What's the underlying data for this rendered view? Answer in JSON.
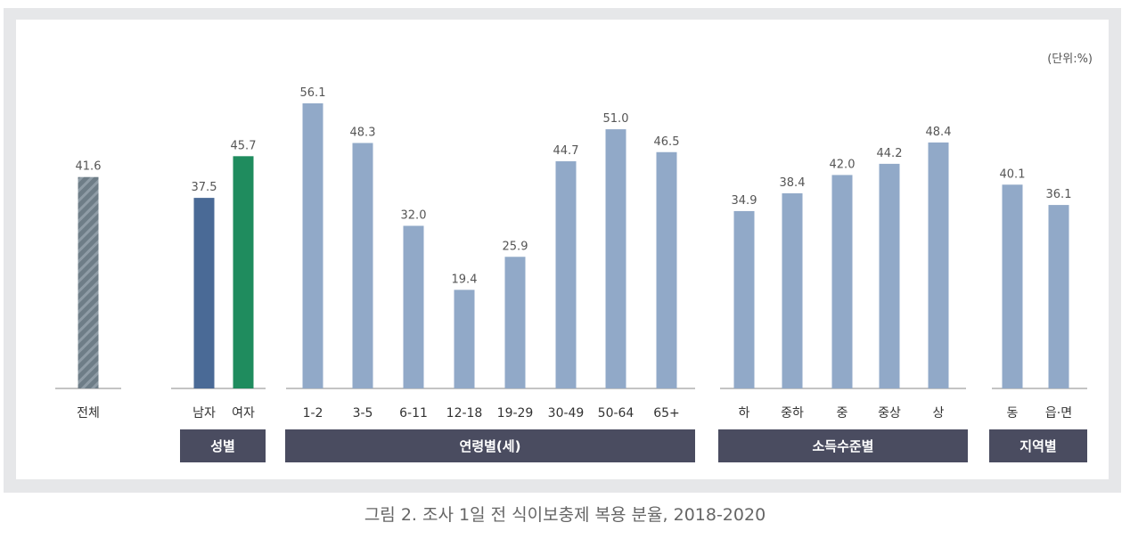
{
  "unit_label": "(단위:%)",
  "caption": "그림 2. 조사 1일 전 식이보충제 복용 분율, 2018-2020",
  "colors": {
    "total": "#6e7d87",
    "total_stripe": "#8f9ca6",
    "male": "#4a6a96",
    "female": "#1f8c5e",
    "default": "#91a9c8",
    "group_bg": "#4a4c60",
    "axis": "#888888"
  },
  "chart_data": {
    "type": "bar",
    "ylim": [
      0,
      60
    ],
    "groups": [
      {
        "label": "",
        "categories": [
          "전체"
        ],
        "values": [
          41.6
        ],
        "values_text": [
          "41.6"
        ],
        "color_keys": [
          "total"
        ]
      },
      {
        "label": "성별",
        "categories": [
          "남자",
          "여자"
        ],
        "values": [
          37.5,
          45.7
        ],
        "values_text": [
          "37.5",
          "45.7"
        ],
        "color_keys": [
          "male",
          "female"
        ]
      },
      {
        "label": "연령별(세)",
        "categories": [
          "1-2",
          "3-5",
          "6-11",
          "12-18",
          "19-29",
          "30-49",
          "50-64",
          "65+"
        ],
        "values": [
          56.1,
          48.3,
          32.0,
          19.4,
          25.9,
          44.7,
          51.0,
          46.5
        ],
        "values_text": [
          "56.1",
          "48.3",
          "32.0",
          "19.4",
          "25.9",
          "44.7",
          "51.0",
          "46.5"
        ],
        "color_keys": [
          "default",
          "default",
          "default",
          "default",
          "default",
          "default",
          "default",
          "default"
        ]
      },
      {
        "label": "소득수준별",
        "categories": [
          "하",
          "중하",
          "중",
          "중상",
          "상"
        ],
        "values": [
          34.9,
          38.4,
          42.0,
          44.2,
          48.4
        ],
        "values_text": [
          "34.9",
          "38.4",
          "42.0",
          "44.2",
          "48.4"
        ],
        "color_keys": [
          "default",
          "default",
          "default",
          "default",
          "default"
        ]
      },
      {
        "label": "지역별",
        "categories": [
          "동",
          "읍·면"
        ],
        "values": [
          40.1,
          36.1
        ],
        "values_text": [
          "40.1",
          "36.1"
        ],
        "color_keys": [
          "default",
          "default"
        ]
      }
    ]
  }
}
